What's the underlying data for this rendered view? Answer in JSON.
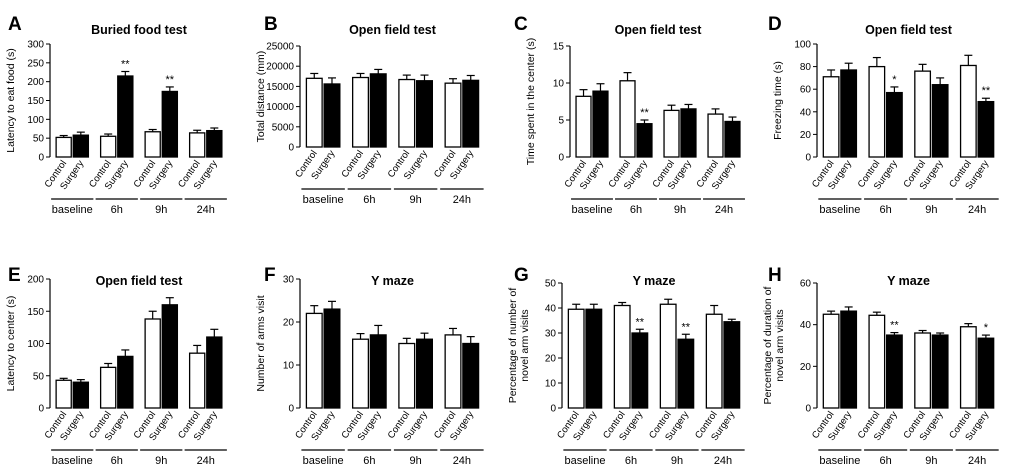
{
  "chart_data": [
    {
      "panel_letter": "A",
      "type": "bar",
      "title": "Buried food test",
      "ylabel": "Latency to eat food (s)",
      "ylim": [
        0,
        300
      ],
      "yticks": [
        "0",
        "50",
        "100",
        "150",
        "200",
        "250",
        "300"
      ],
      "bar_labels": [
        "Control",
        "Surgery"
      ],
      "groups": [
        "baseline",
        "6h",
        "9h",
        "24h"
      ],
      "series": [
        {
          "values": [
            52,
            55,
            67,
            64
          ],
          "errors": [
            5,
            6,
            6,
            7
          ],
          "fill": "white"
        },
        {
          "values": [
            58,
            215,
            174,
            70
          ],
          "errors": [
            8,
            12,
            12,
            7
          ],
          "fill": "black"
        }
      ],
      "significance": [
        [
          "",
          ""
        ],
        [
          "",
          "**"
        ],
        [
          "",
          "**"
        ],
        [
          "",
          ""
        ]
      ]
    },
    {
      "panel_letter": "B",
      "type": "bar",
      "title": "Open field test",
      "ylabel": "Total distance (mm)",
      "ylim": [
        0,
        25000
      ],
      "yticks": [
        "0",
        "5000",
        "10000",
        "15000",
        "20000",
        "25000"
      ],
      "bar_labels": [
        "Control",
        "Surgery"
      ],
      "groups": [
        "baseline",
        "6h",
        "9h",
        "24h"
      ],
      "series": [
        {
          "values": [
            17000,
            17200,
            16700,
            15800
          ],
          "errors": [
            1200,
            1000,
            1100,
            1100
          ],
          "fill": "white"
        },
        {
          "values": [
            15600,
            18100,
            16400,
            16500
          ],
          "errors": [
            1500,
            1100,
            1400,
            1200
          ],
          "fill": "black"
        }
      ],
      "significance": [
        [
          "",
          ""
        ],
        [
          "",
          ""
        ],
        [
          "",
          ""
        ],
        [
          "",
          ""
        ]
      ]
    },
    {
      "panel_letter": "C",
      "type": "bar",
      "title": "Open field test",
      "ylabel": "Time spent in the center (s)",
      "ylim": [
        0,
        15
      ],
      "yticks": [
        "0",
        "5",
        "10",
        "15"
      ],
      "bar_labels": [
        "Control",
        "Surgery"
      ],
      "groups": [
        "baseline",
        "6h",
        "9h",
        "24h"
      ],
      "series": [
        {
          "values": [
            8.2,
            10.3,
            6.3,
            5.8
          ],
          "errors": [
            0.9,
            1.1,
            0.7,
            0.7
          ],
          "fill": "white"
        },
        {
          "values": [
            8.9,
            4.5,
            6.5,
            4.8
          ],
          "errors": [
            1.0,
            0.5,
            0.6,
            0.6
          ],
          "fill": "black"
        }
      ],
      "significance": [
        [
          "",
          ""
        ],
        [
          "",
          "**"
        ],
        [
          "",
          ""
        ],
        [
          "",
          ""
        ]
      ]
    },
    {
      "panel_letter": "D",
      "type": "bar",
      "title": "Open field test",
      "ylabel": "Freezing time (s)",
      "ylim": [
        0,
        100
      ],
      "yticks": [
        "0",
        "20",
        "40",
        "60",
        "80",
        "100"
      ],
      "bar_labels": [
        "Control",
        "Surgery"
      ],
      "groups": [
        "baseline",
        "6h",
        "9h",
        "24h"
      ],
      "series": [
        {
          "values": [
            71,
            80,
            76,
            81
          ],
          "errors": [
            6,
            8,
            6,
            9
          ],
          "fill": "white"
        },
        {
          "values": [
            77,
            57,
            64,
            49
          ],
          "errors": [
            6,
            5,
            6,
            3
          ],
          "fill": "black"
        }
      ],
      "significance": [
        [
          "",
          ""
        ],
        [
          "",
          "*"
        ],
        [
          "",
          ""
        ],
        [
          "",
          "**"
        ]
      ]
    },
    {
      "panel_letter": "E",
      "type": "bar",
      "title": "Open field test",
      "ylabel": "Latency to center (s)",
      "ylim": [
        0,
        200
      ],
      "yticks": [
        "0",
        "50",
        "100",
        "150",
        "200"
      ],
      "bar_labels": [
        "Control",
        "Surgery"
      ],
      "groups": [
        "baseline",
        "6h",
        "9h",
        "24h"
      ],
      "series": [
        {
          "values": [
            43,
            63,
            138,
            85
          ],
          "errors": [
            3,
            6,
            12,
            12
          ],
          "fill": "white"
        },
        {
          "values": [
            40,
            80,
            160,
            110
          ],
          "errors": [
            4,
            10,
            11,
            12
          ],
          "fill": "black"
        }
      ],
      "significance": [
        [
          "",
          ""
        ],
        [
          "",
          ""
        ],
        [
          "",
          ""
        ],
        [
          "",
          ""
        ]
      ]
    },
    {
      "panel_letter": "F",
      "type": "bar",
      "title": "Y maze",
      "ylabel": "Number of arms visit",
      "ylim": [
        0,
        30
      ],
      "yticks": [
        "0",
        "10",
        "20",
        "30"
      ],
      "bar_labels": [
        "Control",
        "Surgery"
      ],
      "groups": [
        "baseline",
        "6h",
        "9h",
        "24h"
      ],
      "series": [
        {
          "values": [
            22,
            16,
            15,
            17
          ],
          "errors": [
            1.8,
            1.3,
            1.2,
            1.5
          ],
          "fill": "white"
        },
        {
          "values": [
            23,
            17,
            16,
            15
          ],
          "errors": [
            1.8,
            2.2,
            1.4,
            1.6
          ],
          "fill": "black"
        }
      ],
      "significance": [
        [
          "",
          ""
        ],
        [
          "",
          ""
        ],
        [
          "",
          ""
        ],
        [
          "",
          ""
        ]
      ]
    },
    {
      "panel_letter": "G",
      "type": "bar",
      "title": "Y maze",
      "ylabel": [
        "Percentage of number of",
        "novel arm visits"
      ],
      "ylim": [
        0,
        50
      ],
      "yticks": [
        "0",
        "10",
        "20",
        "30",
        "40",
        "50"
      ],
      "bar_labels": [
        "Control",
        "Surgery"
      ],
      "groups": [
        "baseline",
        "6h",
        "9h",
        "24h"
      ],
      "series": [
        {
          "values": [
            39.5,
            41,
            41.5,
            37.5
          ],
          "errors": [
            2,
            1.2,
            2,
            3.5
          ],
          "fill": "white"
        },
        {
          "values": [
            39.5,
            30,
            27.5,
            34.5
          ],
          "errors": [
            2,
            1.5,
            2,
            1
          ],
          "fill": "black"
        }
      ],
      "significance": [
        [
          "",
          ""
        ],
        [
          "",
          "**"
        ],
        [
          "",
          "**"
        ],
        [
          "",
          ""
        ]
      ]
    },
    {
      "panel_letter": "H",
      "type": "bar",
      "title": "Y maze",
      "ylabel": [
        "Percentage of duration of",
        "novel arm visits"
      ],
      "ylim": [
        0,
        60
      ],
      "yticks": [
        "0",
        "20",
        "40",
        "60"
      ],
      "bar_labels": [
        "Control",
        "Surgery"
      ],
      "groups": [
        "baseline",
        "6h",
        "9h",
        "24h"
      ],
      "series": [
        {
          "values": [
            45,
            44.5,
            36,
            39
          ],
          "errors": [
            1.5,
            1.5,
            1.2,
            1.5
          ],
          "fill": "white"
        },
        {
          "values": [
            46.5,
            35,
            35,
            33.5
          ],
          "errors": [
            2,
            1.2,
            1,
            1.5
          ],
          "fill": "black"
        }
      ],
      "significance": [
        [
          "",
          ""
        ],
        [
          "",
          "**"
        ],
        [
          "",
          ""
        ],
        [
          "",
          "*"
        ]
      ]
    }
  ]
}
